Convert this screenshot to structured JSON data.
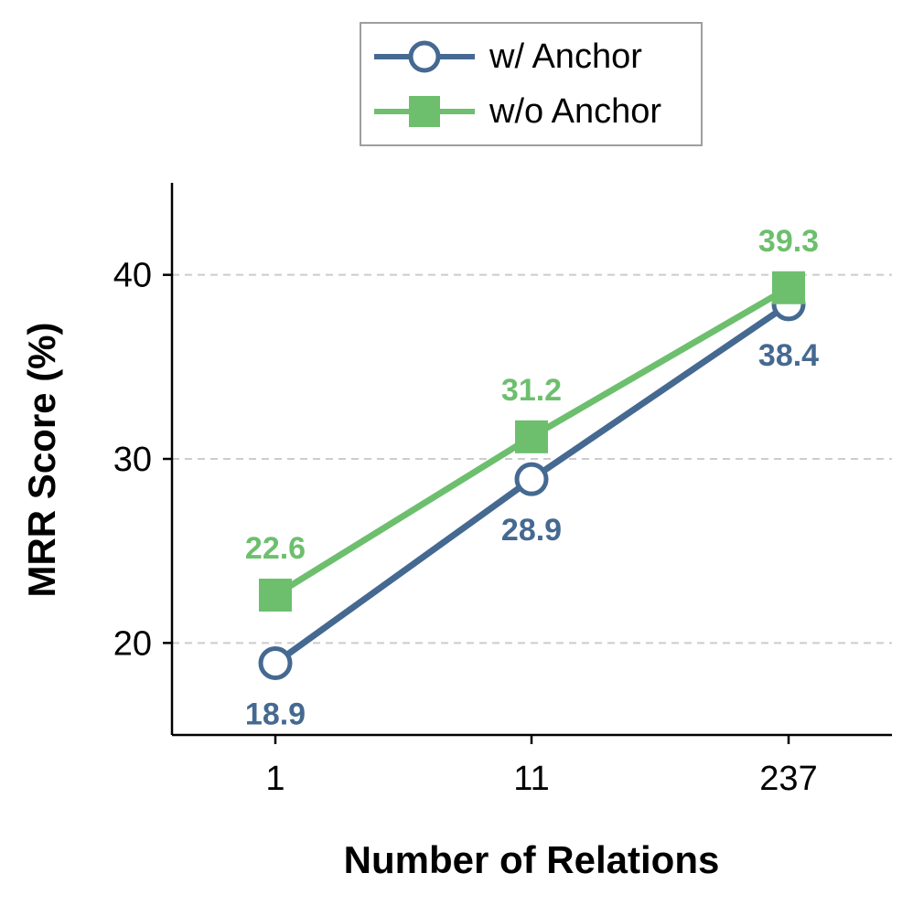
{
  "chart_data": {
    "type": "line",
    "categories": [
      "1",
      "11",
      "237"
    ],
    "xlabel": "Number of Relations",
    "ylabel": "MRR Score (%)",
    "ylim": [
      15,
      45
    ],
    "yticks": [
      20,
      30,
      40
    ],
    "grid": "y-dashed",
    "legend_position": "top-center",
    "series": [
      {
        "name": "w/ Anchor",
        "values": [
          18.9,
          28.9,
          38.4
        ],
        "labels": [
          "18.9",
          "28.9",
          "38.4"
        ],
        "color": "#456991",
        "marker": "circle-open",
        "label_position": "below"
      },
      {
        "name": "w/o Anchor",
        "values": [
          22.6,
          31.2,
          39.3
        ],
        "labels": [
          "22.6",
          "31.2",
          "39.3"
        ],
        "color": "#6dbf6e",
        "marker": "square",
        "label_position": "above"
      }
    ]
  }
}
